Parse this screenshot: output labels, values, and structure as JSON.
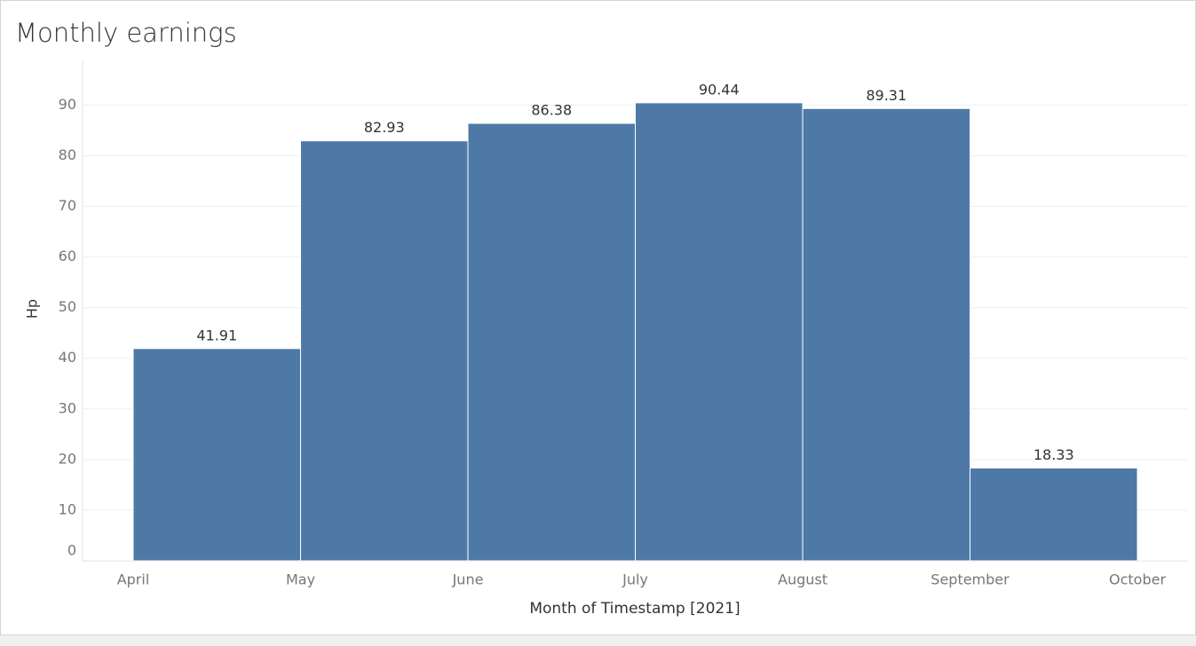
{
  "chart_data": {
    "type": "histogram",
    "title": "Monthly earnings",
    "x_label": "Month of Timestamp [2021]",
    "y_label": "Hp",
    "bins": [
      "April",
      "May",
      "June",
      "July",
      "August",
      "September",
      "October"
    ],
    "values": [
      41.91,
      82.93,
      86.38,
      90.44,
      89.31,
      18.33
    ],
    "color": "#4e79a7",
    "ylim": [
      0,
      99
    ],
    "yticks": [
      0,
      10,
      20,
      30,
      40,
      50,
      60,
      70,
      80,
      90
    ],
    "grid": true
  }
}
